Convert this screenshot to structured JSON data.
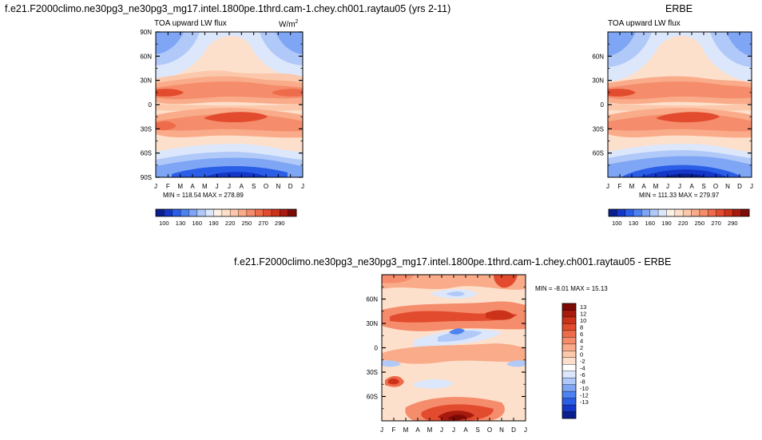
{
  "panels": {
    "model": {
      "title": "f.e21.F2000climo.ne30pg3_ne30pg3_mg17.intel.1800pe.1thrd.cam-1.chey.ch001.raytau05 (yrs 2-11)",
      "variable": "TOA upward LW flux",
      "units": "W/m",
      "units_sup": "2",
      "stats": "MIN = 118.54 MAX = 278.89"
    },
    "obs": {
      "title": "ERBE",
      "variable": "TOA upward LW flux",
      "stats": "MIN = 111.33 MAX = 279.97"
    },
    "diff": {
      "title": "f.e21.F2000climo.ne30pg3_ne30pg3_mg17.intel.1800pe.1thrd.cam-1.chey.ch001.raytau05 - ERBE",
      "stats": "MIN =  -8.01 MAX =  15.13"
    }
  },
  "chart_data": [
    {
      "type": "heatmap",
      "title": "TOA upward LW flux (model)",
      "units": "W/m2",
      "x": [
        "J",
        "F",
        "M",
        "A",
        "M",
        "J",
        "J",
        "A",
        "S",
        "O",
        "N",
        "D",
        "J"
      ],
      "ylabels": [
        "90N",
        "60N",
        "30N",
        "0",
        "30S",
        "60S",
        "90S"
      ],
      "ylim": [
        -90,
        90
      ],
      "min": 118.54,
      "max": 278.89
    },
    {
      "type": "heatmap",
      "title": "TOA upward LW flux (ERBE)",
      "units": "W/m2",
      "x": [
        "J",
        "F",
        "M",
        "A",
        "M",
        "J",
        "J",
        "A",
        "S",
        "O",
        "N",
        "D",
        "J"
      ],
      "ylabels": [
        "60N",
        "30N",
        "0",
        "30S",
        "60S"
      ],
      "ylim": [
        -90,
        90
      ],
      "min": 111.33,
      "max": 279.97
    },
    {
      "type": "heatmap",
      "title": "model - ERBE",
      "x": [
        "J",
        "F",
        "M",
        "A",
        "M",
        "J",
        "J",
        "A",
        "S",
        "O",
        "N",
        "D",
        "J"
      ],
      "ylabels": [
        "60N",
        "30N",
        "0",
        "30S",
        "60S"
      ],
      "ylim": [
        -90,
        90
      ],
      "min": -8.01,
      "max": 15.13
    }
  ],
  "colorbars": {
    "abs": {
      "labels": [
        "100",
        "130",
        "160",
        "190",
        "220",
        "250",
        "270",
        "290"
      ],
      "colors": [
        "#0a1f8f",
        "#1537c8",
        "#2a5ee6",
        "#4d82f0",
        "#7ea6f5",
        "#b0c9f8",
        "#dce7fb",
        "#fdf1e4",
        "#fde0cb",
        "#fcc8ab",
        "#f9ab8a",
        "#f58c6b",
        "#ee6c4b",
        "#e24b2e",
        "#cc3219",
        "#a81a0d",
        "#7e0a06"
      ]
    },
    "diff": {
      "labels": [
        "13",
        "12",
        "10",
        "8",
        "6",
        "4",
        "2",
        "0",
        "-2",
        "-4",
        "-6",
        "-8",
        "-10",
        "-12",
        "-13"
      ],
      "colors": [
        "#7e0a06",
        "#a81a0d",
        "#cc3219",
        "#e24b2e",
        "#ee6c4b",
        "#f58c6b",
        "#f9ab8a",
        "#fcc8ab",
        "#fde0cb",
        "#ffffff",
        "#dce7fb",
        "#b0c9f8",
        "#7ea6f5",
        "#4d82f0",
        "#2a5ee6",
        "#1537c8",
        "#0a1f8f"
      ]
    }
  }
}
